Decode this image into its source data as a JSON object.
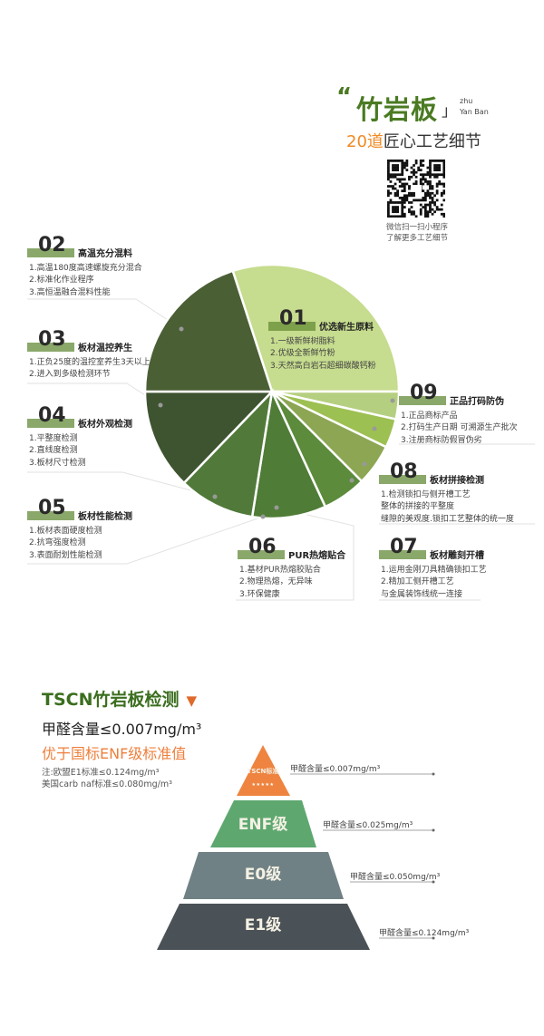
{
  "header": {
    "open_quote": "“",
    "title": "竹岩板",
    "close_quote": "」",
    "pinyin_1": "zhu",
    "pinyin_2": "Yan Ban",
    "subtitle_accent": "20道",
    "subtitle_rest": "匠心工艺细节",
    "qr_caption_1": "微信扫一扫小程序",
    "qr_caption_2": "了解更多工艺细节",
    "qr_icon": "qr-code"
  },
  "colors": {
    "brand_green": "#4a7a22",
    "accent_orange": "#f08a24",
    "label_bar": "#8aa86a"
  },
  "process_steps": [
    {
      "num": "01",
      "title": "优选新生原料",
      "lines": [
        "1.一级新鲜树脂料",
        "2.优级全新鲜竹粉",
        "3.天然高白岩石超细碳酸钙粉"
      ]
    },
    {
      "num": "02",
      "title": "高温充分混料",
      "lines": [
        "1.高温180度高速螺旋充分混合",
        "2.标准化作业程序",
        "3.高恒温融合混料性能"
      ]
    },
    {
      "num": "03",
      "title": "板材温控养生",
      "lines": [
        "1.正负25度的温控室养生3天以上",
        "2.进入到多级检测环节"
      ]
    },
    {
      "num": "04",
      "title": "板材外观检测",
      "lines": [
        "1.平整度检测",
        "2.直线度检测",
        "3.板材尺寸检测"
      ]
    },
    {
      "num": "05",
      "title": "板材性能检测",
      "lines": [
        "1.板材表面硬度检测",
        "2.抗弯强度检测",
        "3.表面耐划性能检测"
      ]
    },
    {
      "num": "06",
      "title": "PUR热熔贴合",
      "lines": [
        "1.基材PUR热熔胶贴合",
        "2.物理热熔，无异味",
        "3.环保健康"
      ]
    },
    {
      "num": "07",
      "title": "板材雕刻开槽",
      "lines": [
        "1.运用金刚刀具精确锁扣工艺",
        "2.精加工侧开槽工艺",
        "与金属装饰线统一连接"
      ]
    },
    {
      "num": "08",
      "title": "板材拼接检测",
      "lines": [
        "1.检测锁扣与侧开槽工艺",
        "整体的拼接的平整度",
        "缝隙的美观度.锁扣工艺整体的统一度"
      ]
    },
    {
      "num": "09",
      "title": "正品打码防伪",
      "lines": [
        "1.正品商标产品",
        "2.打码生产日期 可溯源生产批次",
        "3.注册商标防假冒伪劣"
      ]
    }
  ],
  "chart_data": {
    "type": "pie",
    "slices": [
      {
        "step": "01",
        "share": 30,
        "color": "#c6dc8e"
      },
      {
        "step": "09",
        "share": 3.5,
        "color": "#b5cf80"
      },
      {
        "step": "08",
        "share": 3.7,
        "color": "#9dc052"
      },
      {
        "step": "07",
        "share": 5.3,
        "color": "#8ca654"
      },
      {
        "step": "06",
        "share": 5.6,
        "color": "#5b8b3b"
      },
      {
        "step": "05",
        "share": 9.4,
        "color": "#4f7c36"
      },
      {
        "step": "04",
        "share": 9.7,
        "color": "#517a3a"
      },
      {
        "step": "03",
        "share": 12.8,
        "color": "#3e5330"
      },
      {
        "step": "02",
        "share": 20,
        "color": "#4b5f35"
      }
    ]
  },
  "testing": {
    "title": "TSCN竹岩板检测",
    "title_icon": "triangle-down",
    "hcho": "甲醛含量≤0.007mg/m³",
    "better": "优于国标ENF级标准值",
    "note_1": "注:欧盟E1标准≤0.124mg/m³",
    "note_2": "美国carb naf标准≤0.080mg/m³",
    "pyramid": [
      {
        "label": "TSCN标准",
        "stars": "★★★★★",
        "value": "甲醛含量≤0.007mg/m³",
        "color": "#ee8440"
      },
      {
        "label": "ENF级",
        "value": "甲醛含量≤0.025mg/m³",
        "color": "#5ea870"
      },
      {
        "label": "E0级",
        "value": "甲醛含量≤0.050mg/m³",
        "color": "#6f8184"
      },
      {
        "label": "E1级",
        "value": "甲醛含量≤0.124mg/m³",
        "color": "#4b5257"
      }
    ]
  }
}
